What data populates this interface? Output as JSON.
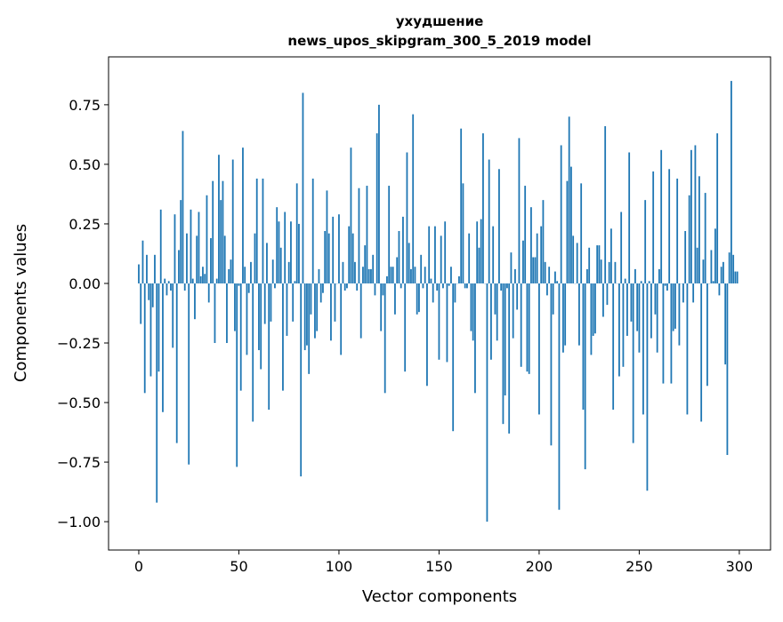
{
  "chart_data": {
    "type": "bar",
    "title_line1": "ухудшение",
    "title_line2": "news_upos_skipgram_300_5_2019 model",
    "xlabel": "Vector components",
    "ylabel": "Components values",
    "xlim": [
      -15.1,
      315.6
    ],
    "ylim": [
      -1.119,
      0.951
    ],
    "xticks": [
      0,
      50,
      100,
      150,
      200,
      250,
      300
    ],
    "xtick_labels": [
      "0",
      "50",
      "100",
      "150",
      "200",
      "250",
      "300"
    ],
    "yticks": [
      -1.0,
      -0.75,
      -0.5,
      -0.25,
      0.0,
      0.25,
      0.5,
      0.75
    ],
    "ytick_labels": [
      "−1.00",
      "−0.75",
      "−0.50",
      "−0.25",
      "0.00",
      "0.25",
      "0.50",
      "0.75"
    ],
    "bar_color": "#1f77b4",
    "grid": false,
    "values": [
      0.08,
      -0.17,
      0.18,
      -0.46,
      0.12,
      -0.07,
      -0.39,
      -0.1,
      0.12,
      -0.92,
      -0.37,
      0.31,
      -0.54,
      0.02,
      -0.05,
      0.01,
      -0.03,
      -0.27,
      0.29,
      -0.67,
      0.14,
      0.35,
      0.64,
      -0.03,
      0.21,
      -0.76,
      0.31,
      0.02,
      -0.15,
      0.2,
      0.3,
      0.03,
      0.07,
      0.04,
      0.37,
      -0.08,
      0.19,
      0.43,
      -0.25,
      0.02,
      0.54,
      0.35,
      0.43,
      0.2,
      -0.25,
      0.06,
      0.1,
      0.52,
      -0.2,
      -0.77,
      -0.01,
      -0.45,
      0.57,
      0.07,
      -0.3,
      -0.04,
      0.09,
      -0.58,
      0.21,
      0.44,
      -0.28,
      -0.36,
      0.44,
      -0.17,
      0.17,
      -0.53,
      -0.16,
      0.1,
      -0.02,
      0.32,
      0.26,
      0.15,
      -0.45,
      0.3,
      -0.22,
      0.09,
      0.26,
      -0.16,
      0.01,
      0.42,
      0.25,
      -0.81,
      0.8,
      -0.28,
      -0.26,
      -0.38,
      -0.13,
      0.44,
      -0.23,
      -0.2,
      0.06,
      -0.08,
      -0.04,
      0.22,
      0.39,
      0.21,
      -0.24,
      0.28,
      -0.16,
      0.0,
      0.29,
      -0.3,
      0.09,
      -0.03,
      -0.02,
      0.24,
      0.57,
      0.21,
      0.09,
      -0.03,
      0.4,
      -0.23,
      0.07,
      0.16,
      0.41,
      0.06,
      0.06,
      0.12,
      -0.05,
      0.63,
      0.75,
      -0.2,
      -0.05,
      -0.46,
      0.03,
      0.41,
      0.07,
      0.07,
      -0.13,
      0.11,
      0.22,
      -0.02,
      0.28,
      -0.37,
      0.55,
      0.17,
      0.06,
      0.71,
      0.07,
      -0.13,
      -0.12,
      0.12,
      -0.02,
      0.07,
      -0.43,
      0.24,
      0.02,
      -0.08,
      0.24,
      -0.03,
      -0.32,
      0.2,
      -0.02,
      0.26,
      -0.33,
      -0.01,
      0.07,
      -0.62,
      -0.08,
      0.0,
      0.03,
      0.65,
      0.42,
      -0.02,
      -0.02,
      0.21,
      -0.2,
      -0.24,
      -0.46,
      0.26,
      0.15,
      0.27,
      0.63,
      0.0,
      -1.0,
      0.52,
      -0.32,
      0.24,
      -0.13,
      -0.24,
      0.48,
      -0.03,
      -0.59,
      -0.47,
      -0.02,
      -0.63,
      0.13,
      -0.23,
      0.06,
      -0.11,
      0.61,
      -0.35,
      0.18,
      0.41,
      -0.37,
      -0.38,
      0.32,
      0.11,
      0.11,
      0.21,
      -0.55,
      0.24,
      0.35,
      0.09,
      -0.05,
      0.07,
      -0.68,
      -0.13,
      0.05,
      0.01,
      -0.95,
      0.58,
      -0.29,
      -0.26,
      0.43,
      0.7,
      0.49,
      0.2,
      0.0,
      0.17,
      -0.26,
      0.42,
      -0.53,
      -0.78,
      0.06,
      0.15,
      -0.3,
      -0.22,
      -0.21,
      0.16,
      0.16,
      0.1,
      -0.14,
      0.66,
      -0.09,
      0.09,
      0.23,
      -0.53,
      0.09,
      0.0,
      -0.39,
      0.3,
      -0.35,
      0.02,
      -0.22,
      0.55,
      -0.16,
      -0.67,
      0.06,
      -0.2,
      -0.29,
      0.01,
      -0.55,
      0.35,
      -0.87,
      0.01,
      -0.23,
      0.47,
      -0.13,
      -0.29,
      0.06,
      0.56,
      -0.42,
      -0.01,
      -0.03,
      0.48,
      -0.42,
      -0.2,
      -0.19,
      0.44,
      -0.26,
      0.0,
      -0.08,
      0.22,
      -0.55,
      0.37,
      0.56,
      -0.08,
      0.58,
      0.15,
      0.45,
      -0.58,
      0.1,
      0.38,
      -0.43,
      0.0,
      0.14,
      0.01,
      0.23,
      0.63,
      -0.05,
      0.07,
      0.09,
      -0.34,
      -0.72,
      0.13,
      0.85,
      0.12,
      0.05,
      0.05
    ]
  }
}
